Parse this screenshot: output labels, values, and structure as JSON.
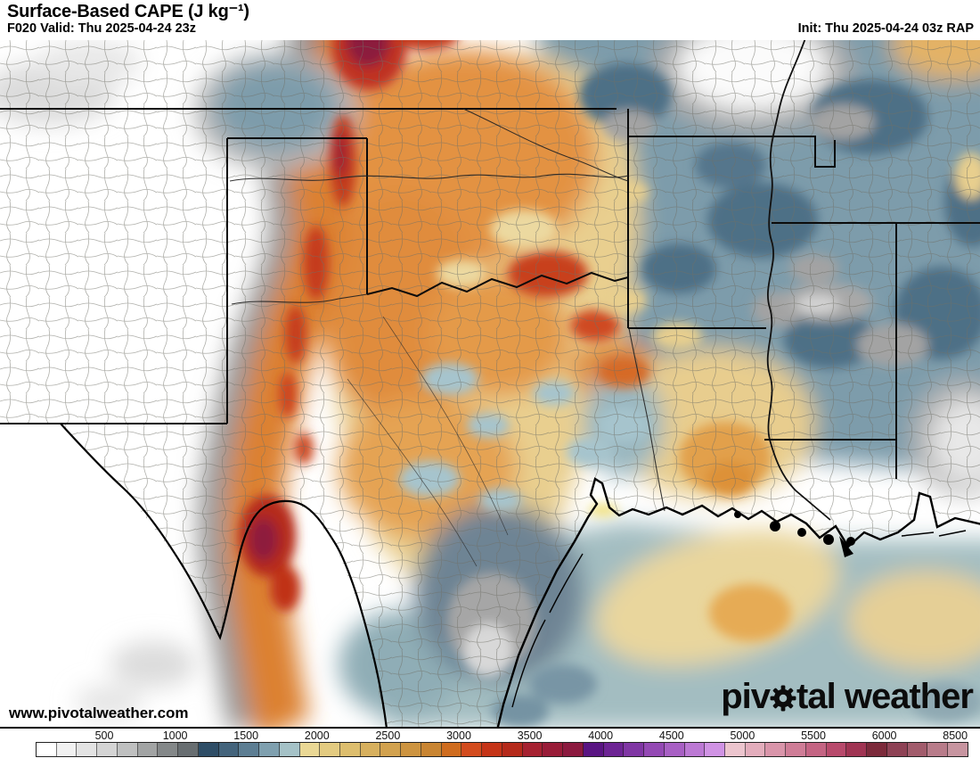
{
  "header": {
    "title": "Surface-Based CAPE (J kg⁻¹)",
    "valid": "F020 Valid: Thu 2025-04-24 23z",
    "init": "Init: Thu 2025-04-24 03z RAP"
  },
  "footer": {
    "url": "www.pivotalweather.com",
    "logo": {
      "part1": "piv",
      "part2": "tal weather"
    }
  },
  "colorbar": {
    "ticks": [
      "500",
      "1000",
      "1500",
      "2000",
      "2500",
      "3000",
      "3500",
      "4000",
      "4500",
      "5000",
      "5500",
      "6000",
      "8500"
    ],
    "colors": [
      "#ffffff",
      "#f1f1f1",
      "#e3e3e3",
      "#d4d4d4",
      "#bfc0c0",
      "#a2a4a4",
      "#848889",
      "#686e71",
      "#2f4e67",
      "#44647c",
      "#5d7e93",
      "#7fa0af",
      "#a5c2c7",
      "#ead895",
      "#e3cb81",
      "#ddbe6e",
      "#d7b05e",
      "#d2a24f",
      "#cd9440",
      "#c98532",
      "#cf6c1e",
      "#d34c1e",
      "#c53418",
      "#b52a1b",
      "#a62231",
      "#991c38",
      "#8c1a3f",
      "#5a1583",
      "#6d2494",
      "#8036a4",
      "#9449b4",
      "#a860c4",
      "#bc79d4",
      "#d093e4",
      "#ecc5ce",
      "#e3adbc",
      "#d995aa",
      "#cf7d97",
      "#c46483",
      "#b84a6c",
      "#a03453",
      "#7c2a3b",
      "#8e4255",
      "#a25c6c",
      "#b87c8a",
      "#c795a0"
    ]
  },
  "map": {
    "description": "Filled CAPE contour map over the south-central United States and Gulf of Mexico"
  }
}
